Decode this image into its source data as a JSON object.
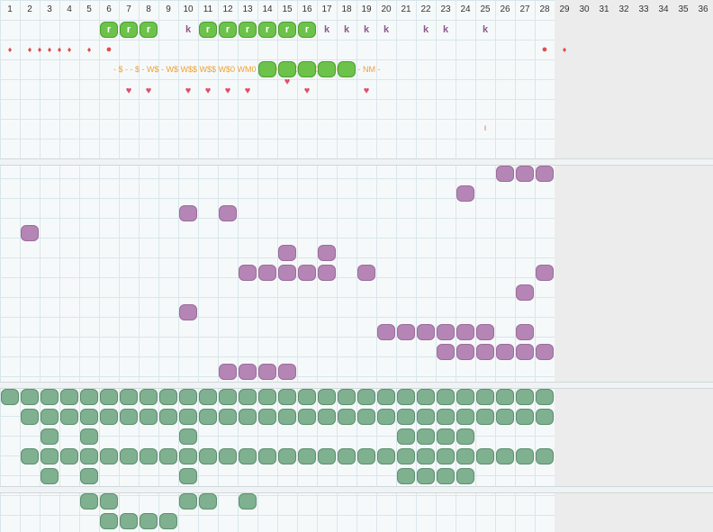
{
  "days": [
    "1",
    "2",
    "3",
    "4",
    "5",
    "6",
    "7",
    "8",
    "9",
    "10",
    "11",
    "12",
    "13",
    "14",
    "15",
    "16",
    "17",
    "18",
    "19",
    "20",
    "21",
    "22",
    "23",
    "24",
    "25",
    "26",
    "27",
    "28",
    "29",
    "30",
    "31",
    "32",
    "33",
    "34",
    "35",
    "36"
  ],
  "colors": {
    "green_bright": "#6cc24a",
    "purple": "#b586b5",
    "teal": "#7fb08f",
    "red": "#e24d4d",
    "orange": "#f0a030",
    "k_color": "#8c5a8c"
  },
  "green_letter": "r",
  "k_letter": "k",
  "tick_char": "ı",
  "drop_char": "♦",
  "dot_char": "●",
  "heart_char": "♥",
  "orange_codes": [
    "-",
    "$",
    "-",
    "-",
    "$",
    "-",
    "W$",
    "-",
    "W$",
    "W$$",
    "W$$",
    "W$0",
    "WM0",
    "WM0",
    "WM0",
    "WM0",
    "WM0",
    "NM",
    "-",
    "NM",
    "-"
  ],
  "sections": {
    "top": {
      "green_row": [
        6,
        7,
        8,
        11,
        12,
        13,
        14,
        15,
        16
      ],
      "k_row": [
        10,
        17,
        18,
        19,
        20,
        22,
        23,
        25
      ],
      "drop_row": [
        1,
        2,
        2.5,
        3,
        3.5,
        4,
        5
      ],
      "dot_row": [
        6,
        28
      ],
      "drop_right": [
        29
      ],
      "heart_row": [
        7,
        8,
        10,
        11,
        12,
        13,
        16,
        19
      ],
      "heart_top": [
        15
      ],
      "tick_row": [
        25
      ]
    },
    "purple": [
      [
        26,
        27,
        28
      ],
      [
        24
      ],
      [
        10,
        12
      ],
      [
        2
      ],
      [
        15,
        17
      ],
      [
        13,
        14,
        15,
        16,
        17,
        19,
        28
      ],
      [
        27
      ],
      [
        10
      ],
      [
        20,
        21,
        22,
        23,
        24,
        25,
        27
      ],
      [
        23,
        24,
        25,
        26,
        27,
        28
      ],
      [
        12,
        13,
        14,
        15
      ]
    ],
    "teal": [
      [
        1,
        2,
        3,
        4,
        5,
        6,
        7,
        8,
        9,
        10,
        11,
        12,
        13,
        14,
        15,
        16,
        17,
        18,
        19,
        20,
        21,
        22,
        23,
        24,
        25,
        26,
        27,
        28
      ],
      [
        2,
        3,
        4,
        5,
        6,
        7,
        8,
        9,
        10,
        11,
        12,
        13,
        14,
        15,
        16,
        17,
        18,
        19,
        20,
        21,
        22,
        23,
        24,
        25,
        26,
        27,
        28
      ],
      [
        3,
        5,
        10,
        21,
        22,
        23,
        24
      ],
      [
        2,
        3,
        4,
        5,
        6,
        7,
        8,
        9,
        10,
        11,
        12,
        13,
        14,
        15,
        16,
        17,
        18,
        19,
        20,
        21,
        22,
        23,
        24,
        25,
        26,
        27,
        28
      ],
      [
        3,
        5,
        10,
        21,
        22,
        23,
        24
      ]
    ],
    "bottom": [
      [
        5,
        6,
        10,
        11,
        13
      ],
      [
        6,
        7,
        8,
        9
      ]
    ]
  }
}
